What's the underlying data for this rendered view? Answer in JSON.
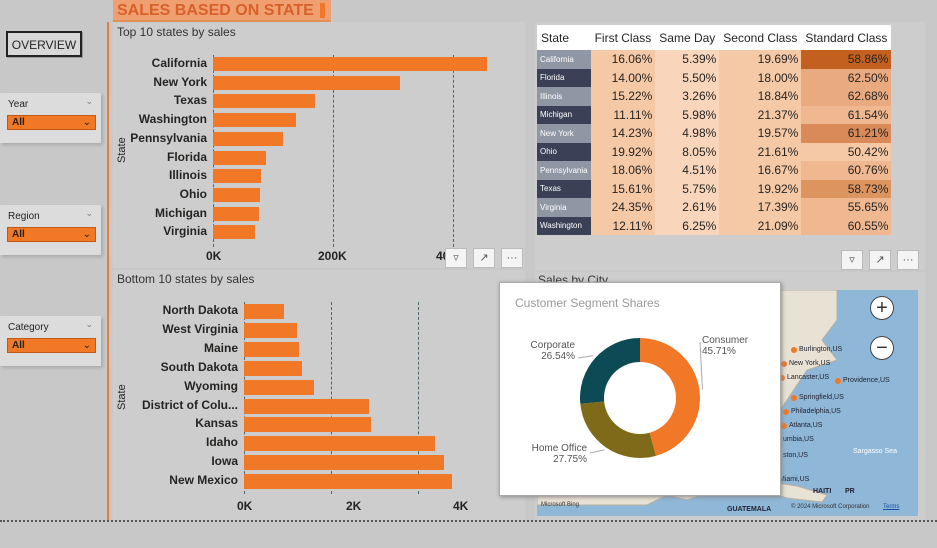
{
  "header": {
    "title": "SALES BASED ON STATE",
    "overview_label": "OVERVIEW"
  },
  "slicers": [
    {
      "label": "Year",
      "value": "All"
    },
    {
      "label": "Region",
      "value": "All"
    },
    {
      "label": "Category",
      "value": "All"
    }
  ],
  "top_chart": {
    "title": "Top 10 states by sales",
    "ylabel": "State",
    "ticks": [
      "0K",
      "200K",
      "40"
    ],
    "chart_data": {
      "type": "bar",
      "categories": [
        "California",
        "New York",
        "Texas",
        "Washington",
        "Pennsylvania",
        "Florida",
        "Illinois",
        "Ohio",
        "Michigan",
        "Virginia"
      ],
      "values": [
        457000,
        311000,
        170000,
        139000,
        116000,
        89000,
        80000,
        78000,
        76000,
        70000
      ],
      "ylabel": "State",
      "xlim": [
        0,
        500000
      ]
    }
  },
  "bottom_chart": {
    "title": "Bottom 10 states by sales",
    "ylabel": "State",
    "ticks": [
      "0K",
      "2K",
      "4K"
    ],
    "chart_data": {
      "type": "bar",
      "categories": [
        "North Dakota",
        "West Virginia",
        "Maine",
        "South Dakota",
        "Wyoming",
        "District of Colu...",
        "Kansas",
        "Idaho",
        "Iowa",
        "New Mexico"
      ],
      "values": [
        920,
        1210,
        1270,
        1320,
        1600,
        2870,
        2910,
        4380,
        4580,
        4780
      ],
      "ylabel": "State",
      "xlim": [
        0,
        5000
      ]
    }
  },
  "matrix": {
    "headers": [
      "State",
      "First Class",
      "Same Day",
      "Second Class",
      "Standard Class"
    ],
    "rows": [
      {
        "state": "California",
        "values": [
          "16.06%",
          "5.39%",
          "19.69%",
          "58.86%"
        ]
      },
      {
        "state": "Florida",
        "values": [
          "14.00%",
          "5.50%",
          "18.00%",
          "62.50%"
        ]
      },
      {
        "state": "Illinois",
        "values": [
          "15.22%",
          "3.26%",
          "18.84%",
          "62.68%"
        ]
      },
      {
        "state": "Michigan",
        "values": [
          "11.11%",
          "5.98%",
          "21.37%",
          "61.54%"
        ]
      },
      {
        "state": "New York",
        "values": [
          "14.23%",
          "4.98%",
          "19.57%",
          "61.21%"
        ]
      },
      {
        "state": "Ohio",
        "values": [
          "19.92%",
          "8.05%",
          "21.61%",
          "50.42%"
        ]
      },
      {
        "state": "Pennsylvania",
        "values": [
          "18.06%",
          "4.51%",
          "16.67%",
          "60.76%"
        ]
      },
      {
        "state": "Texas",
        "values": [
          "15.61%",
          "5.75%",
          "19.92%",
          "58.73%"
        ]
      },
      {
        "state": "Virginia",
        "values": [
          "24.35%",
          "2.61%",
          "17.39%",
          "55.65%"
        ]
      },
      {
        "state": "Washington",
        "values": [
          "12.11%",
          "6.25%",
          "21.09%",
          "60.55%"
        ]
      }
    ]
  },
  "map": {
    "title": "Sales by City",
    "cities": [
      "Burlington,US",
      "New York,US",
      "Lancaster,US",
      "Providence,US",
      "Springfield,US",
      "Philadelphia,US",
      "Atlanta,US",
      "umbia,US",
      "ston,US",
      "Sargasso Sea",
      "HAITI",
      "PR",
      "Miami,US",
      "GUATEMALA"
    ],
    "attribution": "© 2024 Microsoft Corporation",
    "terms": "Terms",
    "bing": "Microsoft Bing"
  },
  "donut": {
    "title": "Customer Segment Shares",
    "chart_data": {
      "type": "pie",
      "categories": [
        "Consumer",
        "Home Office",
        "Corporate"
      ],
      "values": [
        45.71,
        27.75,
        26.54
      ],
      "labels": [
        "45.71%",
        "27.75%",
        "26.54%"
      ],
      "colors": [
        "#f07826",
        "#7f6a19",
        "#0c4a55"
      ]
    }
  }
}
